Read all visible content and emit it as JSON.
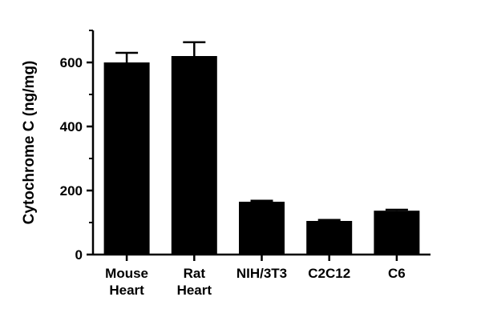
{
  "chart_data": {
    "type": "bar",
    "title": "",
    "xlabel": "",
    "ylabel": "Cytochrome C (ng/mg)",
    "ylim": [
      0,
      700
    ],
    "yticks": [
      0,
      200,
      400,
      600
    ],
    "grid": false,
    "legend": "none",
    "bar_color": "#000000",
    "categories": [
      [
        "Mouse",
        "Heart"
      ],
      [
        "Rat",
        "Heart"
      ],
      [
        "NIH/3T3"
      ],
      [
        "C2C12"
      ],
      [
        "C6"
      ]
    ],
    "values": [
      600,
      620,
      165,
      105,
      137
    ],
    "error_upper": [
      30,
      43,
      3,
      3,
      3
    ]
  }
}
